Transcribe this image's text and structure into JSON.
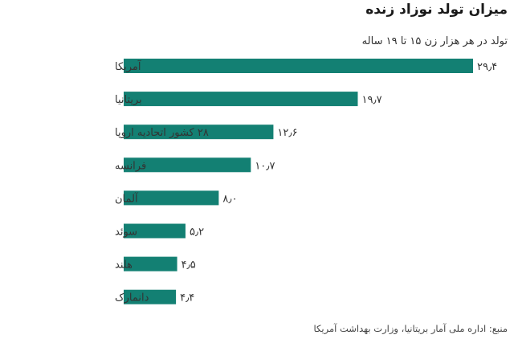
{
  "chart_data": {
    "type": "bar",
    "orientation": "horizontal",
    "title": "میزان تولد نوزاد زنده",
    "subtitle": "تولد در هر هزار زن ۱۵ تا ۱۹ ساله",
    "source": "منبع: اداره ملی آمار بریتانیا، وزارت بهداشت آمریکا",
    "categories": [
      "آمریکا",
      "بریتانیا",
      "۲۸ کشور اتحادیه اروپا",
      "فرانسه",
      "آلمان",
      "سوئد",
      "هلند",
      "دانمارک"
    ],
    "values": [
      29.4,
      19.7,
      12.6,
      10.7,
      8.0,
      5.2,
      4.5,
      4.4
    ],
    "value_labels": [
      "۲۹٫۴",
      "۱۹٫۷",
      "۱۲٫۶",
      "۱۰٫۷",
      "۸٫۰",
      "۵٫۲",
      "۴٫۵",
      "۴٫۴"
    ],
    "xlim": [
      0,
      29.4
    ],
    "grid": false,
    "bar_color": "#138073"
  }
}
